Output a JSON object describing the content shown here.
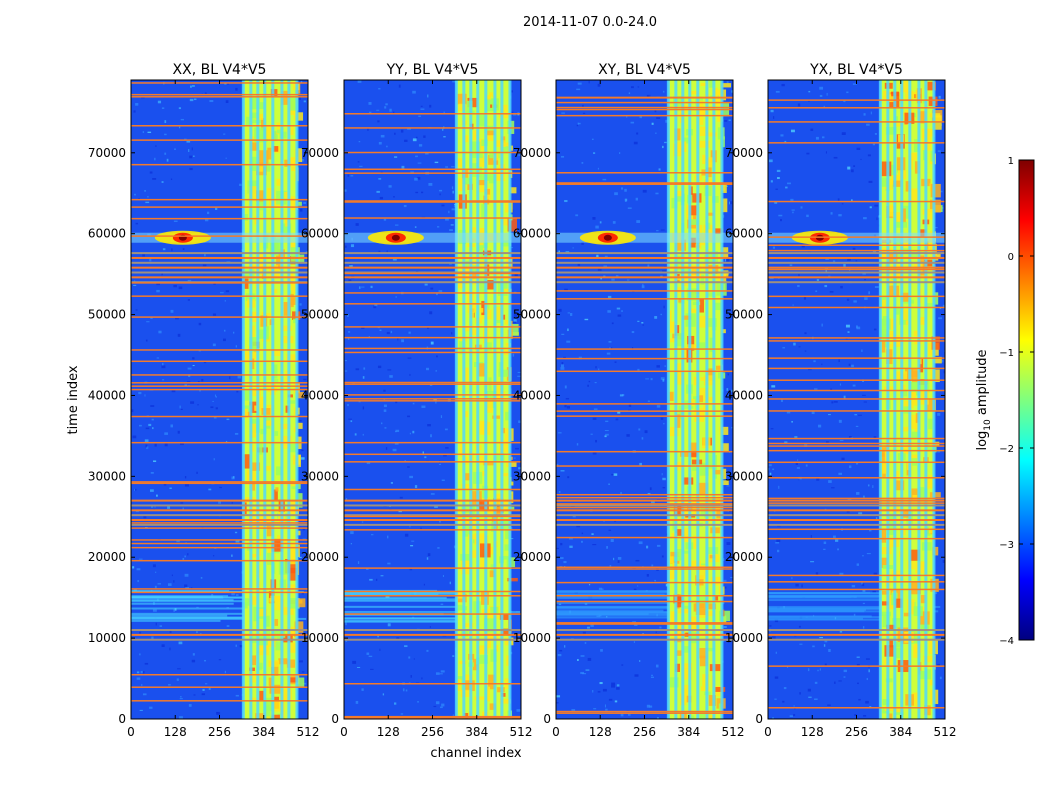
{
  "figure": {
    "suptitle": "2014-11-07 0.0-24.0"
  },
  "chart_data": {
    "type": "heatmap",
    "panels": [
      {
        "title": "XX, BL V4*V5",
        "pol": "XX"
      },
      {
        "title": "YY, BL V4*V5",
        "pol": "YY"
      },
      {
        "title": "XY, BL V4*V5",
        "pol": "XY"
      },
      {
        "title": "YX, BL V4*V5",
        "pol": "YX"
      }
    ],
    "xlabel": "channel index",
    "ylabel": "time index",
    "xlim": [
      0,
      512
    ],
    "ylim": [
      0,
      79000
    ],
    "xticks": [
      0,
      128,
      256,
      384,
      512
    ],
    "yticks": [
      0,
      10000,
      20000,
      30000,
      40000,
      50000,
      60000,
      70000
    ],
    "colorbar": {
      "label": "log10 amplitude",
      "label_base": "log",
      "label_sub": "10",
      "label_rest": " amplitude",
      "vmin": -4,
      "vmax": 1,
      "ticks": [
        1,
        0,
        -1,
        -2,
        -3,
        -4
      ],
      "tick_labels": [
        "1",
        "0",
        "−1",
        "−2",
        "−3",
        "−4"
      ],
      "colormap": "jet",
      "colors": [
        "#00007f",
        "#0000ff",
        "#007fff",
        "#00ffff",
        "#7fff7f",
        "#ffff00",
        "#ff7f00",
        "#ff0000",
        "#7f0000"
      ]
    },
    "features": {
      "band_channels": [
        325,
        480
      ],
      "hot_spot": {
        "channel": 150,
        "time": 59500
      },
      "flagged_time_ranges": [
        [
          24000,
          27500
        ],
        [
          9800,
          11500
        ],
        [
          54000,
          58000
        ]
      ]
    }
  }
}
